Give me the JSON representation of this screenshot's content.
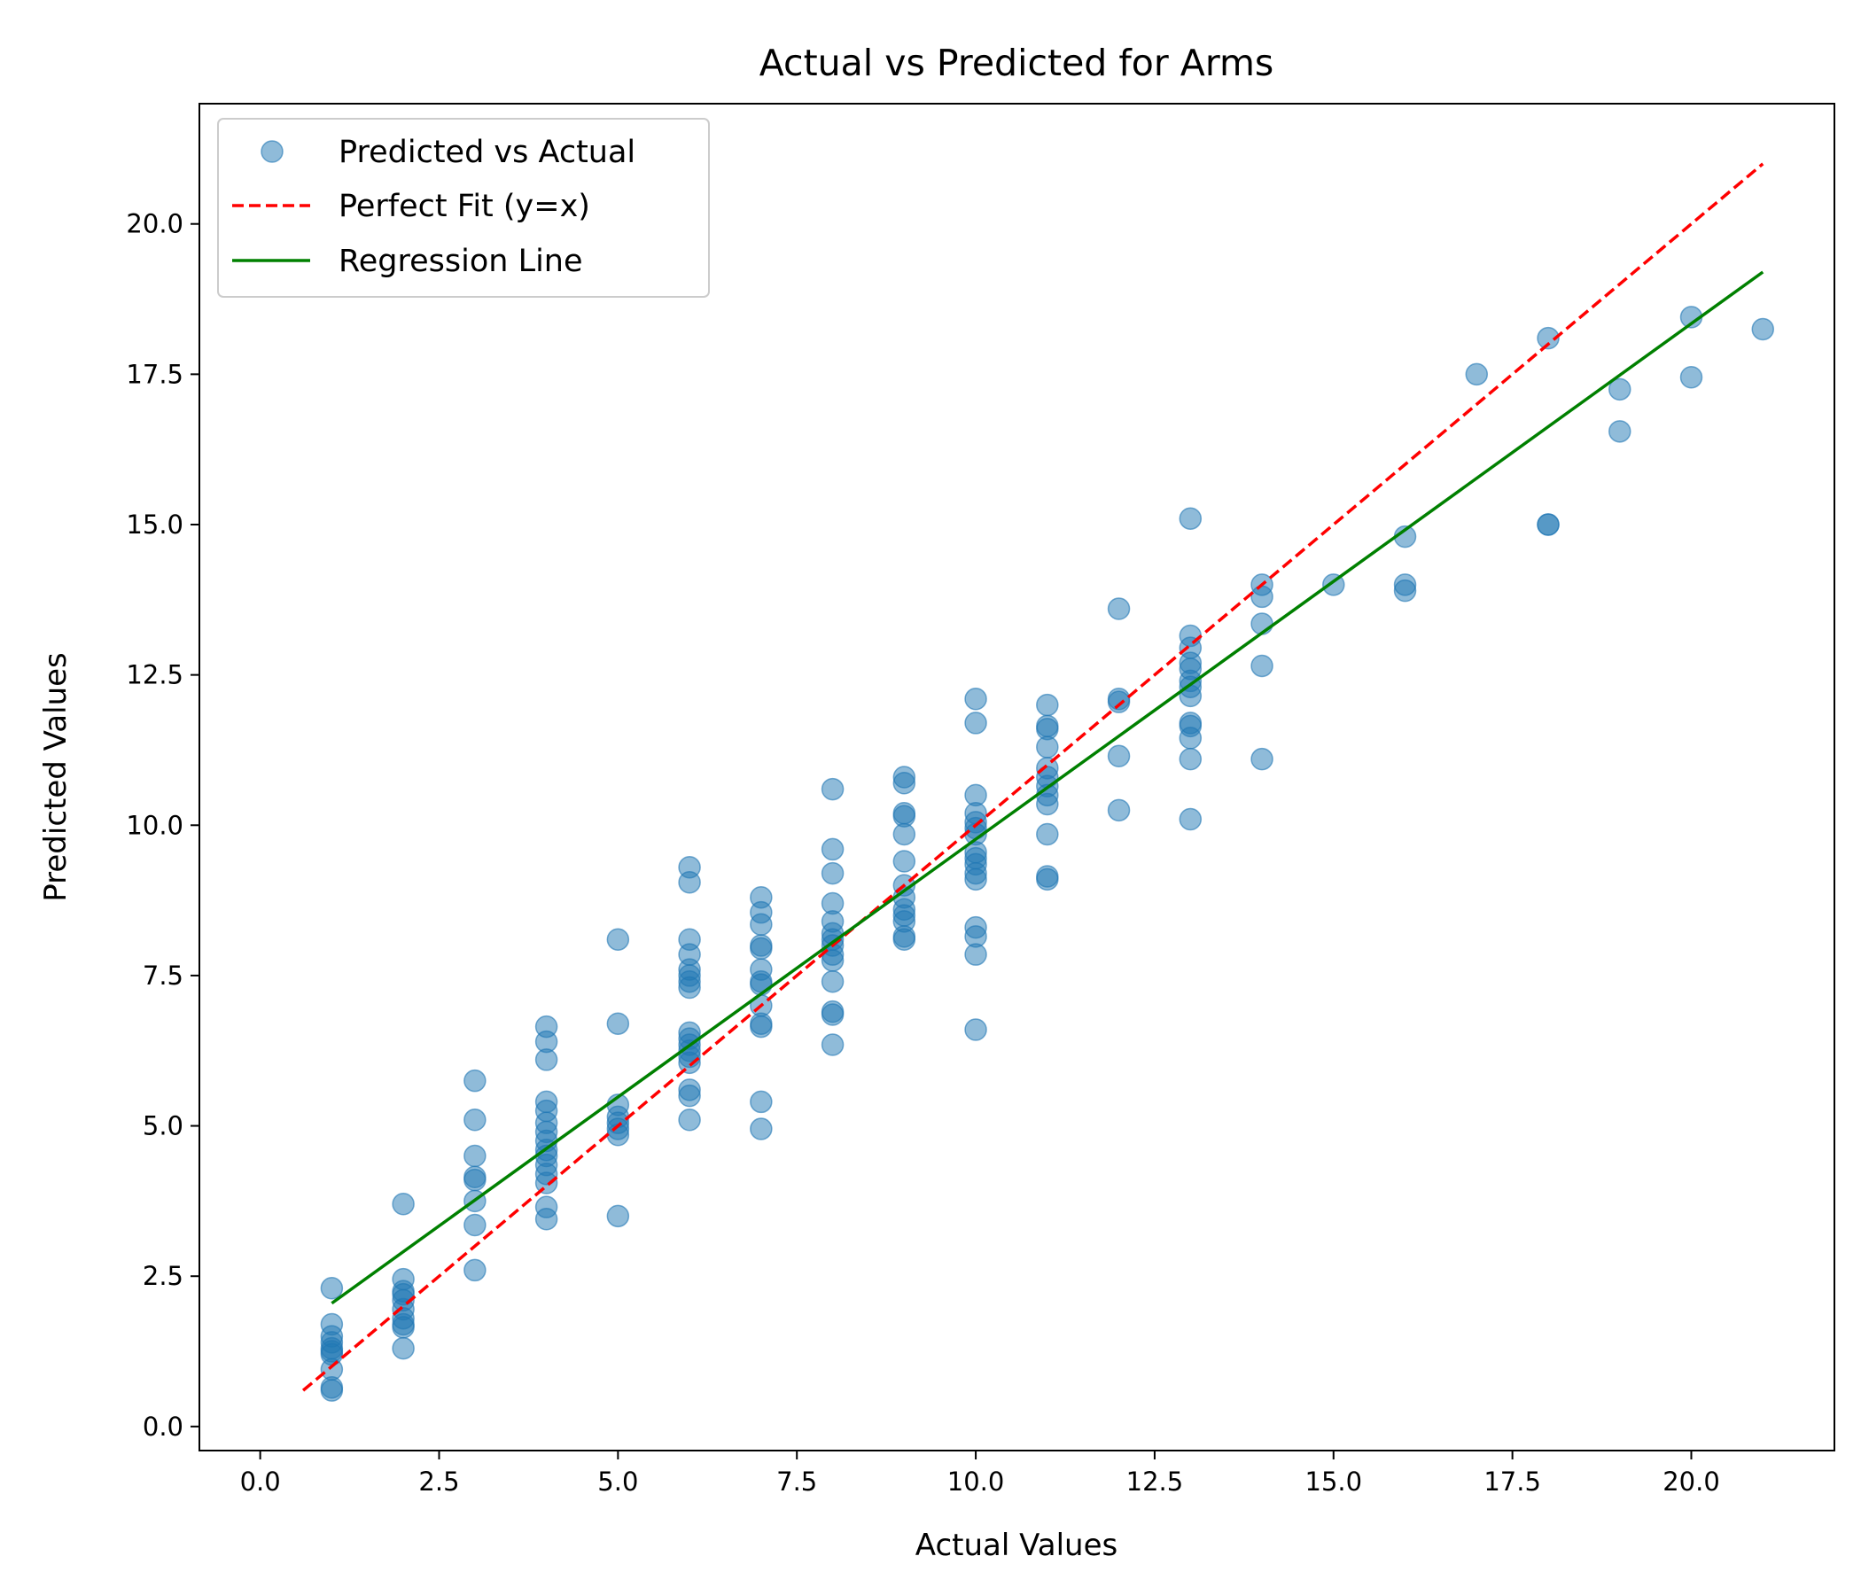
{
  "chart_data": {
    "type": "scatter",
    "title": "Actual vs Predicted for Arms",
    "xlabel": "Actual Values",
    "ylabel": "Predicted Values",
    "xlim": [
      -0.85,
      22.0
    ],
    "ylim": [
      -0.4,
      22.0
    ],
    "xticks": [
      0,
      2.5,
      5,
      7.5,
      10,
      12.5,
      15,
      17.5,
      20
    ],
    "xtick_labels": [
      "0.0",
      "2.5",
      "5.0",
      "7.5",
      "10.0",
      "12.5",
      "15.0",
      "17.5",
      "20.0"
    ],
    "yticks": [
      0,
      2.5,
      5,
      7.5,
      10,
      12.5,
      15,
      17.5,
      20
    ],
    "ytick_labels": [
      "0.0",
      "2.5",
      "5.0",
      "7.5",
      "10.0",
      "12.5",
      "15.0",
      "17.5",
      "20.0"
    ],
    "grid": false,
    "legend": {
      "placement": "top-left",
      "entries": [
        {
          "label": "Predicted vs Actual",
          "kind": "marker"
        },
        {
          "label": "Perfect Fit (y=x)",
          "kind": "dashed-line"
        },
        {
          "label": "Regression Line",
          "kind": "line"
        }
      ]
    },
    "colors": {
      "points": "#1f77b4",
      "perfect_fit": "#ff0000",
      "regression": "#008000"
    },
    "series": [
      {
        "name": "Predicted vs Actual",
        "kind": "scatter",
        "points": [
          [
            1,
            2.3
          ],
          [
            1,
            1.7
          ],
          [
            1,
            1.5
          ],
          [
            1,
            1.4
          ],
          [
            1,
            1.3
          ],
          [
            1,
            1.25
          ],
          [
            1,
            1.2
          ],
          [
            1,
            0.95
          ],
          [
            1,
            0.65
          ],
          [
            1,
            0.6
          ],
          [
            2,
            3.7
          ],
          [
            2,
            2.45
          ],
          [
            2,
            2.25
          ],
          [
            2,
            2.2
          ],
          [
            2,
            2.1
          ],
          [
            2,
            1.95
          ],
          [
            2,
            1.8
          ],
          [
            2,
            1.7
          ],
          [
            2,
            1.65
          ],
          [
            2,
            1.3
          ],
          [
            3,
            5.75
          ],
          [
            3,
            5.1
          ],
          [
            3,
            4.5
          ],
          [
            3,
            4.15
          ],
          [
            3,
            4.1
          ],
          [
            3,
            3.75
          ],
          [
            3,
            3.35
          ],
          [
            3,
            2.6
          ],
          [
            4,
            6.65
          ],
          [
            4,
            6.4
          ],
          [
            4,
            6.1
          ],
          [
            4,
            5.4
          ],
          [
            4,
            5.25
          ],
          [
            4,
            5.05
          ],
          [
            4,
            4.9
          ],
          [
            4,
            4.75
          ],
          [
            4,
            4.6
          ],
          [
            4,
            4.5
          ],
          [
            4,
            4.35
          ],
          [
            4,
            4.2
          ],
          [
            4,
            4.05
          ],
          [
            4,
            3.65
          ],
          [
            4,
            3.45
          ],
          [
            5,
            8.1
          ],
          [
            5,
            6.7
          ],
          [
            5,
            5.35
          ],
          [
            5,
            5.15
          ],
          [
            5,
            5.05
          ],
          [
            5,
            4.95
          ],
          [
            5,
            4.85
          ],
          [
            5,
            3.5
          ],
          [
            6,
            9.3
          ],
          [
            6,
            9.05
          ],
          [
            6,
            8.1
          ],
          [
            6,
            7.85
          ],
          [
            6,
            7.6
          ],
          [
            6,
            7.5
          ],
          [
            6,
            7.4
          ],
          [
            6,
            7.3
          ],
          [
            6,
            6.55
          ],
          [
            6,
            6.45
          ],
          [
            6,
            6.35
          ],
          [
            6,
            6.25
          ],
          [
            6,
            6.15
          ],
          [
            6,
            6.05
          ],
          [
            6,
            5.6
          ],
          [
            6,
            5.5
          ],
          [
            6,
            5.1
          ],
          [
            7,
            8.8
          ],
          [
            7,
            8.55
          ],
          [
            7,
            8.35
          ],
          [
            7,
            8.0
          ],
          [
            7,
            7.95
          ],
          [
            7,
            7.6
          ],
          [
            7,
            7.4
          ],
          [
            7,
            7.35
          ],
          [
            7,
            7.0
          ],
          [
            7,
            6.7
          ],
          [
            7,
            6.65
          ],
          [
            7,
            5.4
          ],
          [
            7,
            4.95
          ],
          [
            8,
            10.6
          ],
          [
            8,
            9.6
          ],
          [
            8,
            9.2
          ],
          [
            8,
            8.7
          ],
          [
            8,
            8.4
          ],
          [
            8,
            8.2
          ],
          [
            8,
            8.1
          ],
          [
            8,
            8.0
          ],
          [
            8,
            7.85
          ],
          [
            8,
            7.75
          ],
          [
            8,
            7.4
          ],
          [
            8,
            6.9
          ],
          [
            8,
            6.85
          ],
          [
            8,
            6.35
          ],
          [
            9,
            10.8
          ],
          [
            9,
            10.7
          ],
          [
            9,
            10.2
          ],
          [
            9,
            10.15
          ],
          [
            9,
            9.85
          ],
          [
            9,
            9.4
          ],
          [
            9,
            9.0
          ],
          [
            9,
            8.8
          ],
          [
            9,
            8.6
          ],
          [
            9,
            8.5
          ],
          [
            9,
            8.4
          ],
          [
            9,
            8.15
          ],
          [
            9,
            8.1
          ],
          [
            10,
            12.1
          ],
          [
            10,
            11.7
          ],
          [
            10,
            10.5
          ],
          [
            10,
            10.2
          ],
          [
            10,
            10.05
          ],
          [
            10,
            9.95
          ],
          [
            10,
            9.85
          ],
          [
            10,
            9.55
          ],
          [
            10,
            9.45
          ],
          [
            10,
            9.35
          ],
          [
            10,
            9.2
          ],
          [
            10,
            9.1
          ],
          [
            10,
            8.3
          ],
          [
            10,
            8.15
          ],
          [
            10,
            7.85
          ],
          [
            10,
            6.6
          ],
          [
            11,
            12.0
          ],
          [
            11,
            11.65
          ],
          [
            11,
            11.6
          ],
          [
            11,
            11.3
          ],
          [
            11,
            10.95
          ],
          [
            11,
            10.8
          ],
          [
            11,
            10.65
          ],
          [
            11,
            10.5
          ],
          [
            11,
            10.35
          ],
          [
            11,
            9.85
          ],
          [
            11,
            9.15
          ],
          [
            11,
            9.1
          ],
          [
            12,
            13.6
          ],
          [
            12,
            12.1
          ],
          [
            12,
            12.05
          ],
          [
            12,
            11.15
          ],
          [
            12,
            10.25
          ],
          [
            13,
            15.1
          ],
          [
            13,
            13.15
          ],
          [
            13,
            12.95
          ],
          [
            13,
            12.7
          ],
          [
            13,
            12.6
          ],
          [
            13,
            12.4
          ],
          [
            13,
            12.3
          ],
          [
            13,
            12.15
          ],
          [
            13,
            11.7
          ],
          [
            13,
            11.65
          ],
          [
            13,
            11.45
          ],
          [
            13,
            11.1
          ],
          [
            13,
            10.1
          ],
          [
            14,
            14.0
          ],
          [
            14,
            13.8
          ],
          [
            14,
            13.35
          ],
          [
            14,
            12.65
          ],
          [
            14,
            11.1
          ],
          [
            15,
            14.0
          ],
          [
            16,
            14.8
          ],
          [
            16,
            14.0
          ],
          [
            16,
            13.9
          ],
          [
            17,
            17.5
          ],
          [
            18,
            18.1
          ],
          [
            18,
            15.0
          ],
          [
            18,
            15.0
          ],
          [
            19,
            17.25
          ],
          [
            19,
            16.55
          ],
          [
            20,
            18.45
          ],
          [
            20,
            17.45
          ],
          [
            21,
            18.25
          ]
        ]
      },
      {
        "name": "Perfect Fit (y=x)",
        "kind": "line",
        "dashed": true,
        "points": [
          [
            0.6,
            0.6
          ],
          [
            21,
            21
          ]
        ]
      },
      {
        "name": "Regression Line",
        "kind": "line",
        "dashed": false,
        "points": [
          [
            1,
            2.05
          ],
          [
            21,
            19.2
          ]
        ]
      }
    ]
  }
}
